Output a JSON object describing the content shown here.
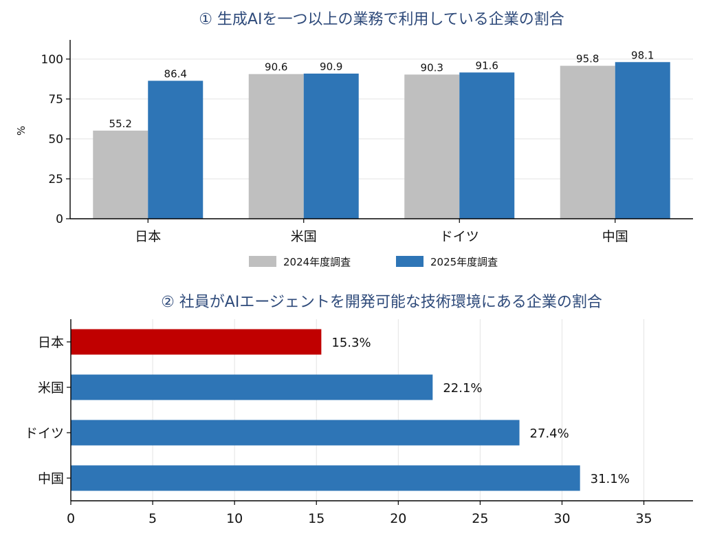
{
  "chart_data": [
    {
      "type": "bar",
      "title": "① 生成AIを一つ以上の業務で利用している企業の割合",
      "ylabel": "%",
      "xlabel": "",
      "categories": [
        "日本",
        "米国",
        "ドイツ",
        "中国"
      ],
      "series": [
        {
          "name": "2024年度調査",
          "color": "#bfbfbf",
          "values": [
            55.2,
            90.6,
            90.3,
            95.8
          ],
          "labels": [
            "55.2",
            "90.6",
            "90.3",
            "95.8"
          ]
        },
        {
          "name": "2025年度調査",
          "color": "#2e75b6",
          "values": [
            86.4,
            90.9,
            91.6,
            98.1
          ],
          "labels": [
            "86.4",
            "90.9",
            "91.6",
            "98.1"
          ]
        }
      ],
      "ylim": [
        0,
        112
      ],
      "yticks": [
        0,
        25,
        50,
        75,
        100
      ],
      "ytick_labels": [
        "0",
        "25",
        "50",
        "75",
        "100"
      ],
      "grid": "horizontal",
      "legend": "bottom-center"
    },
    {
      "type": "bar",
      "orientation": "horizontal",
      "title": "② 社員がAIエージェントを開発可能な技術環境にある企業の割合",
      "categories": [
        "日本",
        "米国",
        "ドイツ",
        "中国"
      ],
      "values": [
        15.3,
        22.1,
        27.4,
        31.1
      ],
      "labels": [
        "15.3%",
        "22.1%",
        "27.4%",
        "31.1%"
      ],
      "colors": [
        "#c00000",
        "#2e75b6",
        "#2e75b6",
        "#2e75b6"
      ],
      "xlim": [
        0,
        38
      ],
      "xticks": [
        0,
        5,
        10,
        15,
        20,
        25,
        30,
        35
      ],
      "xtick_labels": [
        "0",
        "5",
        "10",
        "15",
        "20",
        "25",
        "30",
        "35"
      ],
      "grid": "vertical"
    }
  ]
}
